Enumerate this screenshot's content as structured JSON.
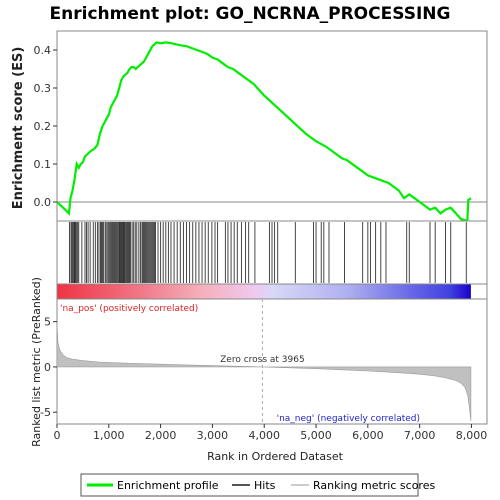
{
  "chart_data": {
    "type": "line",
    "title": "Enrichment plot: GO_NCRNA_PROCESSING",
    "xlabel": "Rank in Ordered Dataset",
    "es_panel": {
      "ylabel": "Enrichment score (ES)",
      "ylim": [
        -0.05,
        0.45
      ],
      "yticks": [
        "0.0",
        "0.1",
        "0.2",
        "0.3",
        "0.4"
      ],
      "ytick_values": [
        0.0,
        0.1,
        0.2,
        0.3,
        0.4
      ],
      "series": [
        {
          "name": "Enrichment profile",
          "color": "#00ee00",
          "x": [
            0,
            120,
            230,
            260,
            300,
            340,
            380,
            420,
            460,
            500,
            540,
            580,
            620,
            660,
            720,
            780,
            830,
            880,
            920,
            960,
            1000,
            1040,
            1080,
            1120,
            1160,
            1200,
            1240,
            1280,
            1320,
            1360,
            1400,
            1440,
            1480,
            1520,
            1560,
            1600,
            1640,
            1680,
            1720,
            1760,
            1800,
            1840,
            1880,
            1920,
            2000,
            2100,
            2200,
            2300,
            2400,
            2500,
            2600,
            2700,
            2800,
            2900,
            3000,
            3100,
            3200,
            3300,
            3400,
            3500,
            3600,
            3700,
            3800,
            3900,
            4000,
            4200,
            4400,
            4600,
            4800,
            5000,
            5200,
            5400,
            5500,
            5600,
            5800,
            6000,
            6100,
            6200,
            6300,
            6400,
            6500,
            6600,
            6700,
            6800,
            6900,
            7000,
            7100,
            7200,
            7300,
            7400,
            7500,
            7600,
            7700,
            7800,
            7920,
            7940,
            7990
          ],
          "y": [
            0.0,
            -0.015,
            -0.03,
            0.01,
            0.03,
            0.06,
            0.1,
            0.09,
            0.1,
            0.105,
            0.12,
            0.125,
            0.13,
            0.135,
            0.14,
            0.15,
            0.18,
            0.2,
            0.21,
            0.22,
            0.23,
            0.25,
            0.26,
            0.27,
            0.28,
            0.3,
            0.32,
            0.33,
            0.335,
            0.34,
            0.35,
            0.355,
            0.355,
            0.35,
            0.355,
            0.36,
            0.365,
            0.37,
            0.38,
            0.39,
            0.4,
            0.41,
            0.415,
            0.42,
            0.418,
            0.42,
            0.418,
            0.415,
            0.412,
            0.41,
            0.405,
            0.4,
            0.395,
            0.39,
            0.38,
            0.375,
            0.365,
            0.355,
            0.35,
            0.34,
            0.33,
            0.32,
            0.31,
            0.295,
            0.28,
            0.255,
            0.23,
            0.205,
            0.18,
            0.16,
            0.145,
            0.125,
            0.115,
            0.11,
            0.09,
            0.07,
            0.065,
            0.06,
            0.055,
            0.05,
            0.04,
            0.03,
            0.01,
            0.02,
            0.01,
            0.0,
            -0.01,
            -0.02,
            -0.015,
            -0.03,
            -0.02,
            -0.015,
            -0.03,
            -0.045,
            -0.05,
            0.005,
            0.01
          ]
        }
      ]
    },
    "hits_panel": {
      "legend_name": "Hits",
      "hit_ranks": [
        240,
        270,
        290,
        310,
        330,
        345,
        360,
        380,
        400,
        420,
        480,
        540,
        570,
        600,
        640,
        700,
        740,
        780,
        810,
        840,
        860,
        880,
        900,
        930,
        950,
        980,
        1000,
        1020,
        1040,
        1060,
        1080,
        1100,
        1120,
        1140,
        1160,
        1180,
        1200,
        1215,
        1230,
        1245,
        1260,
        1275,
        1290,
        1305,
        1320,
        1340,
        1360,
        1380,
        1400,
        1420,
        1450,
        1480,
        1510,
        1540,
        1580,
        1610,
        1640,
        1660,
        1680,
        1700,
        1720,
        1740,
        1760,
        1780,
        1800,
        1820,
        1840,
        1860,
        1880,
        1900,
        1950,
        2000,
        2050,
        2100,
        2150,
        2200,
        2260,
        2320,
        2380,
        2440,
        2500,
        2560,
        2620,
        2680,
        2740,
        2800,
        2860,
        2920,
        2990,
        3050,
        3100,
        3250,
        3300,
        3360,
        3420,
        3480,
        3560,
        3640,
        3700,
        3820,
        4100,
        4150,
        4200,
        4260,
        4600,
        4950,
        5000,
        5100,
        5150,
        5250,
        5550,
        5900,
        6000,
        6050,
        6150,
        6250,
        6350,
        6750,
        6800,
        7200,
        7300,
        7500,
        7600,
        7900
      ]
    },
    "ranked_bar": {
      "gradient_stops": [
        {
          "at": 0.0,
          "color": "#ee3344"
        },
        {
          "at": 0.18,
          "color": "#f07080"
        },
        {
          "at": 0.35,
          "color": "#f5b0bc"
        },
        {
          "at": 0.48,
          "color": "#f0c8f0"
        },
        {
          "at": 0.52,
          "color": "#d8d8f8"
        },
        {
          "at": 0.7,
          "color": "#b0b0f0"
        },
        {
          "at": 0.85,
          "color": "#6a6ae8"
        },
        {
          "at": 0.95,
          "color": "#4040e0"
        },
        {
          "at": 1.0,
          "color": "#1c00c8"
        }
      ]
    },
    "metric_panel": {
      "ylabel": "Ranked list metric (PreRanked)",
      "ylim": [
        -6.3,
        7.5
      ],
      "yticks": [
        "-5",
        "0",
        "5"
      ],
      "ytick_values": [
        -5,
        0,
        5
      ],
      "legend_name": "Ranking metric scores",
      "zero_cross_label": "Zero cross at 3965",
      "zero_cross_rank": 3965,
      "pos_label": "'na_pos' (positively correlated)",
      "neg_label": "'na_neg' (negatively correlated)",
      "profile_x": [
        0,
        20,
        60,
        120,
        200,
        300,
        500,
        800,
        1200,
        1600,
        2000,
        2500,
        3000,
        3500,
        3965,
        4500,
        5000,
        5500,
        6000,
        6500,
        7000,
        7300,
        7500,
        7700,
        7800,
        7880,
        7930,
        7960,
        7990
      ],
      "profile_y": [
        4.8,
        2.6,
        1.8,
        1.3,
        1.0,
        0.85,
        0.7,
        0.55,
        0.45,
        0.38,
        0.3,
        0.22,
        0.15,
        0.07,
        0.0,
        -0.1,
        -0.2,
        -0.32,
        -0.45,
        -0.6,
        -0.8,
        -1.0,
        -1.2,
        -1.5,
        -1.8,
        -2.3,
        -3.2,
        -4.5,
        -6.0
      ]
    },
    "xaxis": {
      "xlim": [
        0,
        8300
      ],
      "xticks": [
        "0",
        "1,000",
        "2,000",
        "3,000",
        "4,000",
        "5,000",
        "6,000",
        "7,000",
        "8,000"
      ],
      "xtick_values": [
        0,
        1000,
        2000,
        3000,
        4000,
        5000,
        6000,
        7000,
        8000
      ]
    },
    "legend": {
      "placement": "bottom",
      "items": [
        "Enrichment profile",
        "Hits",
        "Ranking metric scores"
      ]
    }
  }
}
